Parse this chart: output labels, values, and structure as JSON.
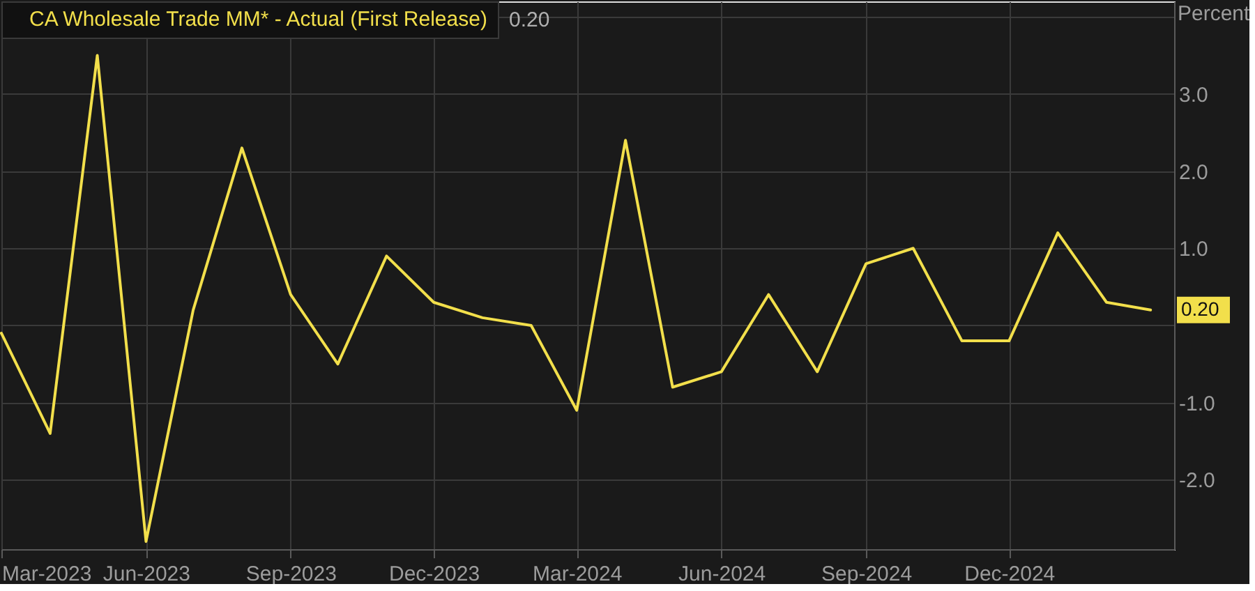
{
  "chart_data": {
    "type": "line",
    "x": [
      "2023-03",
      "2023-04",
      "2023-05",
      "2023-06",
      "2023-07",
      "2023-08",
      "2023-09",
      "2023-10",
      "2023-11",
      "2023-12",
      "2024-01",
      "2024-02",
      "2024-03",
      "2024-04",
      "2024-05",
      "2024-06",
      "2024-07",
      "2024-08",
      "2024-09",
      "2024-10",
      "2024-11",
      "2024-12",
      "2025-01",
      "2025-02",
      "2025-03"
    ],
    "series": [
      {
        "name": "CA Wholesale Trade MM* - Actual (First Release)",
        "color": "#f2df4b",
        "values": [
          -0.1,
          -1.4,
          3.5,
          -2.8,
          0.2,
          2.3,
          0.4,
          -0.5,
          0.9,
          0.3,
          0.1,
          0.0,
          -1.1,
          2.4,
          -0.8,
          -0.6,
          0.4,
          -0.6,
          0.8,
          1.0,
          -0.2,
          -0.2,
          1.2,
          0.3,
          0.2
        ],
        "value_labels": [
          null,
          null,
          null,
          null,
          null,
          null,
          null,
          null,
          null,
          null,
          null,
          null,
          null,
          null,
          null,
          null,
          null,
          null,
          null,
          null,
          null,
          null,
          null,
          null,
          "0.20"
        ]
      }
    ],
    "ylabel": "Percent",
    "annotations": [
      "0.20"
    ],
    "xlim": [
      "2023-03-01",
      "2025-03-16"
    ],
    "xticks": [
      {
        "value": "2023-03",
        "label": "Mar-2023"
      },
      {
        "value": "2023-06",
        "label": "Jun-2023"
      },
      {
        "value": "2023-09",
        "label": "Sep-2023"
      },
      {
        "value": "2023-12",
        "label": "Dec-2023"
      },
      {
        "value": "2024-03",
        "label": "Mar-2024"
      },
      {
        "value": "2024-06",
        "label": "Jun-2024"
      },
      {
        "value": "2024-09",
        "label": "Sep-2024"
      },
      {
        "value": "2024-12",
        "label": "Dec-2024"
      }
    ],
    "ylim": [
      -2.9,
      4.2
    ],
    "yticks": [
      {
        "value": 4,
        "label": null
      },
      {
        "value": 3,
        "label": "3.0"
      },
      {
        "value": 2,
        "label": "2.0"
      },
      {
        "value": 1,
        "label": "1.0"
      },
      {
        "value": 0,
        "label": null
      },
      {
        "value": -1,
        "label": "-1.0"
      },
      {
        "value": -2,
        "label": "-2.0"
      }
    ],
    "grid": true,
    "legend": "top left"
  }
}
